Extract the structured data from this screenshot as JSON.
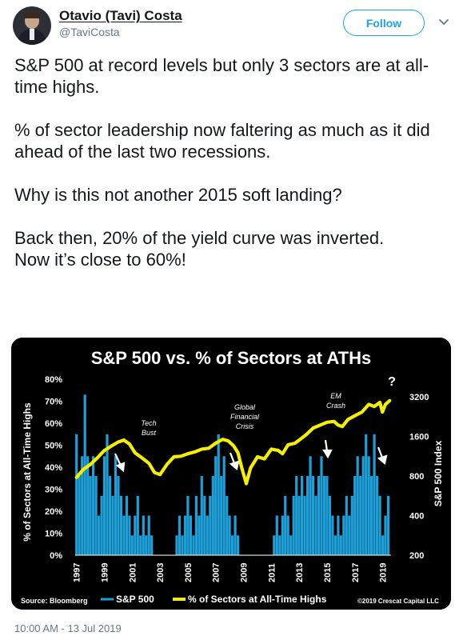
{
  "author": {
    "name": "Otavio (Tavi) Costa",
    "handle": "@TaviCosta"
  },
  "follow_label": "Follow",
  "icons": {
    "more": "chevron-down-icon"
  },
  "tweet_paragraphs": [
    "S&P 500 at record levels but only 3 sectors are at all-time highs.",
    "% of sector leadership now faltering as much as it did ahead of the last two recessions.",
    "Why is this not another 2015 soft landing?"
  ],
  "tweet_last_lines": [
    "Back then, 20% of the yield curve was inverted.",
    "Now it’s close to 60%!"
  ],
  "timestamp": "10:00 AM - 13 Jul 2019",
  "colors": {
    "chart_bg": "#000000",
    "bars": "#1e9fd8",
    "line": "#f5f000",
    "brand_blue": "#1da1f2"
  },
  "chart_data": {
    "type": "bar",
    "title": "S&P 500 vs. % of Sectors at ATHs",
    "ylabel_left": "% of Sectors at All-Time Highs",
    "ylabel_right": "S&P 500 Index",
    "left_ticks": [
      "0%",
      "10%",
      "20%",
      "30%",
      "40%",
      "50%",
      "60%",
      "70%",
      "80%"
    ],
    "right_ticks": [
      "200",
      "400",
      "800",
      "1600",
      "3200"
    ],
    "x_ticks": [
      "1997",
      "1999",
      "2001",
      "2003",
      "2005",
      "2007",
      "2009",
      "2011",
      "2013",
      "2015",
      "2017",
      "2019"
    ],
    "annotations": [
      "Tech Bust",
      "Global Financial Crisis",
      "EM Crash",
      "?"
    ],
    "source": "Source: Bloomberg",
    "copyright": "©2019 Crescat Capital LLC",
    "legend": [
      "S&P 500",
      "% of Sectors at All-Time Highs"
    ],
    "series": [
      {
        "values": [
          [
            1997.0,
            0.55
          ],
          [
            1997.2,
            0.36
          ],
          [
            1997.4,
            0.45
          ],
          [
            1997.6,
            0.73
          ],
          [
            1997.8,
            0.45
          ],
          [
            1998.0,
            0.36
          ],
          [
            1998.2,
            0.45
          ],
          [
            1998.4,
            0.36
          ],
          [
            1998.6,
            0.18
          ],
          [
            1998.8,
            0.27
          ],
          [
            1999.0,
            0.45
          ],
          [
            1999.2,
            0.55
          ],
          [
            1999.4,
            0.36
          ],
          [
            1999.6,
            0.27
          ],
          [
            1999.8,
            0.45
          ],
          [
            2000.0,
            0.36
          ],
          [
            2000.2,
            0.27
          ],
          [
            2000.4,
            0.18
          ],
          [
            2000.6,
            0.27
          ],
          [
            2000.8,
            0.18
          ],
          [
            2001.0,
            0.09
          ],
          [
            2001.2,
            0.18
          ],
          [
            2001.4,
            0.27
          ],
          [
            2001.6,
            0.09
          ],
          [
            2001.8,
            0.18
          ],
          [
            2002.0,
            0.09
          ],
          [
            2002.2,
            0.18
          ],
          [
            2002.4,
            0.09
          ],
          [
            2002.6,
            0.0
          ],
          [
            2002.8,
            0.0
          ],
          [
            2003.0,
            0.0
          ],
          [
            2003.2,
            0.0
          ],
          [
            2003.4,
            0.0
          ],
          [
            2003.6,
            0.0
          ],
          [
            2003.8,
            0.0
          ],
          [
            2004.0,
            0.0
          ],
          [
            2004.2,
            0.09
          ],
          [
            2004.4,
            0.18
          ],
          [
            2004.6,
            0.09
          ],
          [
            2004.8,
            0.18
          ],
          [
            2005.0,
            0.27
          ],
          [
            2005.2,
            0.18
          ],
          [
            2005.4,
            0.09
          ],
          [
            2005.6,
            0.27
          ],
          [
            2005.8,
            0.18
          ],
          [
            2006.0,
            0.36
          ],
          [
            2006.2,
            0.27
          ],
          [
            2006.4,
            0.18
          ],
          [
            2006.6,
            0.27
          ],
          [
            2006.8,
            0.36
          ],
          [
            2007.0,
            0.45
          ],
          [
            2007.2,
            0.55
          ],
          [
            2007.4,
            0.36
          ],
          [
            2007.6,
            0.45
          ],
          [
            2007.8,
            0.27
          ],
          [
            2008.0,
            0.18
          ],
          [
            2008.2,
            0.09
          ],
          [
            2008.4,
            0.18
          ],
          [
            2008.6,
            0.09
          ],
          [
            2008.8,
            0.0
          ],
          [
            2009.0,
            0.0
          ],
          [
            2009.2,
            0.0
          ],
          [
            2009.4,
            0.0
          ],
          [
            2009.6,
            0.0
          ],
          [
            2009.8,
            0.0
          ],
          [
            2010.0,
            0.0
          ],
          [
            2010.2,
            0.0
          ],
          [
            2010.4,
            0.0
          ],
          [
            2010.6,
            0.0
          ],
          [
            2010.8,
            0.0
          ],
          [
            2011.0,
            0.0
          ],
          [
            2011.2,
            0.09
          ],
          [
            2011.4,
            0.18
          ],
          [
            2011.6,
            0.09
          ],
          [
            2011.8,
            0.18
          ],
          [
            2012.0,
            0.27
          ],
          [
            2012.2,
            0.18
          ],
          [
            2012.4,
            0.09
          ],
          [
            2012.6,
            0.27
          ],
          [
            2012.8,
            0.36
          ],
          [
            2013.0,
            0.27
          ],
          [
            2013.2,
            0.36
          ],
          [
            2013.4,
            0.27
          ],
          [
            2013.6,
            0.36
          ],
          [
            2013.8,
            0.45
          ],
          [
            2014.0,
            0.36
          ],
          [
            2014.2,
            0.27
          ],
          [
            2014.4,
            0.36
          ],
          [
            2014.6,
            0.45
          ],
          [
            2014.8,
            0.36
          ],
          [
            2015.0,
            0.36
          ],
          [
            2015.2,
            0.27
          ],
          [
            2015.4,
            0.18
          ],
          [
            2015.6,
            0.09
          ],
          [
            2015.8,
            0.18
          ],
          [
            2016.0,
            0.09
          ],
          [
            2016.2,
            0.18
          ],
          [
            2016.4,
            0.27
          ],
          [
            2016.6,
            0.18
          ],
          [
            2016.8,
            0.27
          ],
          [
            2017.0,
            0.36
          ],
          [
            2017.2,
            0.45
          ],
          [
            2017.4,
            0.36
          ],
          [
            2017.6,
            0.45
          ],
          [
            2017.8,
            0.55
          ],
          [
            2018.0,
            0.45
          ],
          [
            2018.2,
            0.36
          ],
          [
            2018.4,
            0.55
          ],
          [
            2018.6,
            0.36
          ],
          [
            2018.8,
            0.27
          ],
          [
            2019.0,
            0.09
          ],
          [
            2019.2,
            0.18
          ],
          [
            2019.4,
            0.27
          ]
        ]
      },
      {
        "values": [
          [
            1997.0,
            780
          ],
          [
            1997.5,
            900
          ],
          [
            1998.0,
            980
          ],
          [
            1998.5,
            1100
          ],
          [
            1999.0,
            1250
          ],
          [
            1999.5,
            1350
          ],
          [
            2000.0,
            1450
          ],
          [
            2000.4,
            1500
          ],
          [
            2000.8,
            1400
          ],
          [
            2001.2,
            1200
          ],
          [
            2001.7,
            1100
          ],
          [
            2002.2,
            1000
          ],
          [
            2002.6,
            850
          ],
          [
            2003.0,
            820
          ],
          [
            2003.5,
            980
          ],
          [
            2004.0,
            1120
          ],
          [
            2004.5,
            1130
          ],
          [
            2005.0,
            1180
          ],
          [
            2005.5,
            1220
          ],
          [
            2006.0,
            1280
          ],
          [
            2006.5,
            1300
          ],
          [
            2007.0,
            1420
          ],
          [
            2007.5,
            1520
          ],
          [
            2007.9,
            1480
          ],
          [
            2008.3,
            1350
          ],
          [
            2008.6,
            1200
          ],
          [
            2008.9,
            900
          ],
          [
            2009.2,
            700
          ],
          [
            2009.5,
            920
          ],
          [
            2010.0,
            1120
          ],
          [
            2010.5,
            1080
          ],
          [
            2011.0,
            1280
          ],
          [
            2011.5,
            1250
          ],
          [
            2011.8,
            1180
          ],
          [
            2012.2,
            1380
          ],
          [
            2012.7,
            1420
          ],
          [
            2013.0,
            1500
          ],
          [
            2013.5,
            1650
          ],
          [
            2014.0,
            1850
          ],
          [
            2014.5,
            1950
          ],
          [
            2015.0,
            2050
          ],
          [
            2015.5,
            2080
          ],
          [
            2015.8,
            1950
          ],
          [
            2016.1,
            1900
          ],
          [
            2016.5,
            2150
          ],
          [
            2017.0,
            2300
          ],
          [
            2017.5,
            2450
          ],
          [
            2018.0,
            2800
          ],
          [
            2018.4,
            2700
          ],
          [
            2018.8,
            2900
          ],
          [
            2018.98,
            2450
          ],
          [
            2019.2,
            2800
          ],
          [
            2019.5,
            2990
          ]
        ]
      }
    ]
  }
}
